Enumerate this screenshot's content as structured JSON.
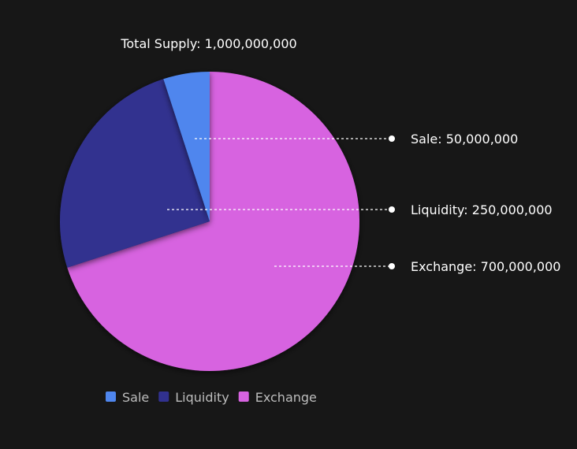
{
  "chart_data": {
    "type": "pie",
    "title": "Total Supply: 1,000,000,000",
    "categories": [
      "Sale",
      "Liquidity",
      "Exchange"
    ],
    "values": [
      50000000,
      250000000,
      700000000
    ],
    "annotations": [
      {
        "category": "Sale",
        "text": "Sale: 50,000,000"
      },
      {
        "category": "Liquidity",
        "text": "Liquidity: 250,000,000"
      },
      {
        "category": "Exchange",
        "text": "Exchange: 700,000,000"
      }
    ],
    "colors": {
      "Sale": "#4f86ee",
      "Liquidity": "#31318f",
      "Exchange": "#d763e0"
    },
    "legend": {
      "position": "bottom-center",
      "items": [
        "Sale",
        "Liquidity",
        "Exchange"
      ]
    },
    "background": "#171717"
  }
}
